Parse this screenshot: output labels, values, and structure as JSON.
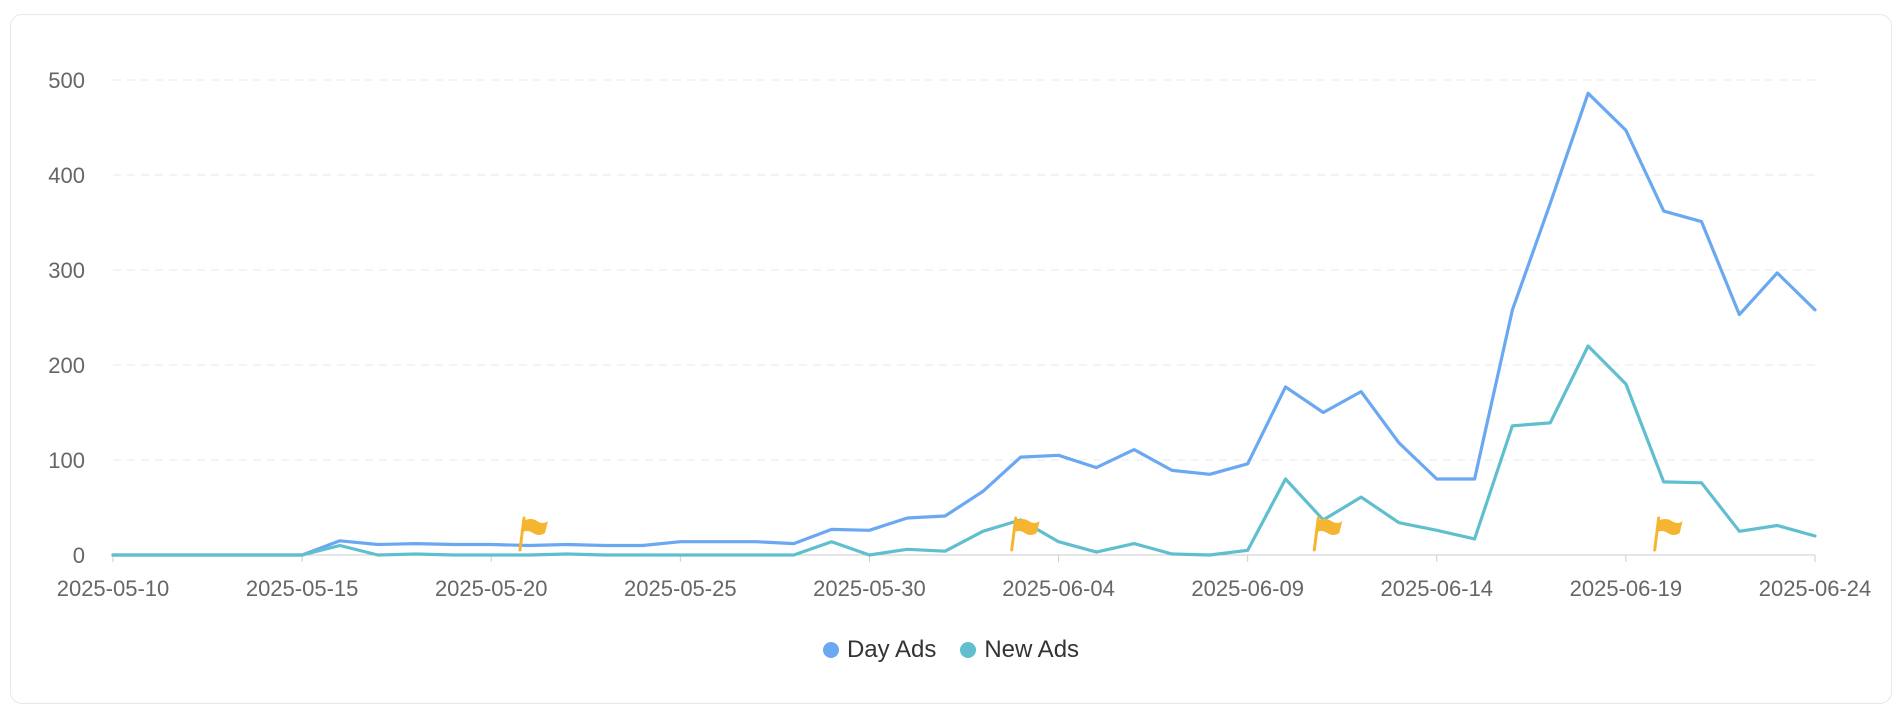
{
  "chart_data": {
    "type": "line",
    "title": "",
    "xlabel": "",
    "ylabel": "",
    "ylim": [
      0,
      500
    ],
    "yticks": [
      0,
      100,
      200,
      300,
      400,
      500
    ],
    "grid": true,
    "legend_position": "bottom",
    "x": [
      "2025-05-10",
      "2025-05-11",
      "2025-05-12",
      "2025-05-13",
      "2025-05-14",
      "2025-05-15",
      "2025-05-16",
      "2025-05-17",
      "2025-05-18",
      "2025-05-19",
      "2025-05-20",
      "2025-05-21",
      "2025-05-22",
      "2025-05-23",
      "2025-05-24",
      "2025-05-25",
      "2025-05-26",
      "2025-05-27",
      "2025-05-28",
      "2025-05-29",
      "2025-05-30",
      "2025-05-31",
      "2025-06-01",
      "2025-06-02",
      "2025-06-03",
      "2025-06-04",
      "2025-06-05",
      "2025-06-06",
      "2025-06-07",
      "2025-06-08",
      "2025-06-09",
      "2025-06-10",
      "2025-06-11",
      "2025-06-12",
      "2025-06-13",
      "2025-06-14",
      "2025-06-15",
      "2025-06-16",
      "2025-06-17",
      "2025-06-18",
      "2025-06-19",
      "2025-06-20",
      "2025-06-21",
      "2025-06-22",
      "2025-06-23",
      "2025-06-24"
    ],
    "xtick_labels": [
      "2025-05-10",
      "2025-05-15",
      "2025-05-20",
      "2025-05-25",
      "2025-05-30",
      "2025-06-04",
      "2025-06-09",
      "2025-06-14",
      "2025-06-19",
      "2025-06-24"
    ],
    "series": [
      {
        "name": "Day Ads",
        "color": "#6aa8f2",
        "values": [
          0,
          0,
          0,
          0,
          0,
          0,
          15,
          11,
          12,
          11,
          11,
          10,
          11,
          10,
          10,
          14,
          14,
          14,
          12,
          27,
          26,
          39,
          41,
          67,
          103,
          105,
          92,
          111,
          89,
          85,
          96,
          177,
          150,
          172,
          118,
          80,
          80,
          258,
          370,
          486,
          447,
          362,
          351,
          253,
          297,
          258
        ]
      },
      {
        "name": "New Ads",
        "color": "#5fbfcf",
        "values": [
          0,
          0,
          0,
          0,
          0,
          0,
          10,
          0,
          1,
          0,
          0,
          0,
          1,
          0,
          0,
          0,
          0,
          0,
          0,
          14,
          0,
          6,
          4,
          25,
          37,
          14,
          3,
          12,
          1,
          0,
          5,
          80,
          37,
          61,
          34,
          26,
          17,
          136,
          139,
          220,
          180,
          77,
          76,
          25,
          31,
          20
        ]
      }
    ],
    "annotations": [
      {
        "type": "flag-icon",
        "date": "2025-05-21",
        "value": 0
      },
      {
        "type": "flag-icon",
        "date": "2025-06-03",
        "value": 0
      },
      {
        "type": "flag-icon",
        "date": "2025-06-11",
        "value": 0
      },
      {
        "type": "flag-icon",
        "date": "2025-06-20",
        "value": 0
      }
    ],
    "flag_color": "#f5b531",
    "grid_color": "#e8e8e8",
    "axis_color": "#cccccc"
  },
  "legend": [
    {
      "label": "Day Ads",
      "color": "#6aa8f2"
    },
    {
      "label": "New Ads",
      "color": "#5fbfcf"
    }
  ]
}
